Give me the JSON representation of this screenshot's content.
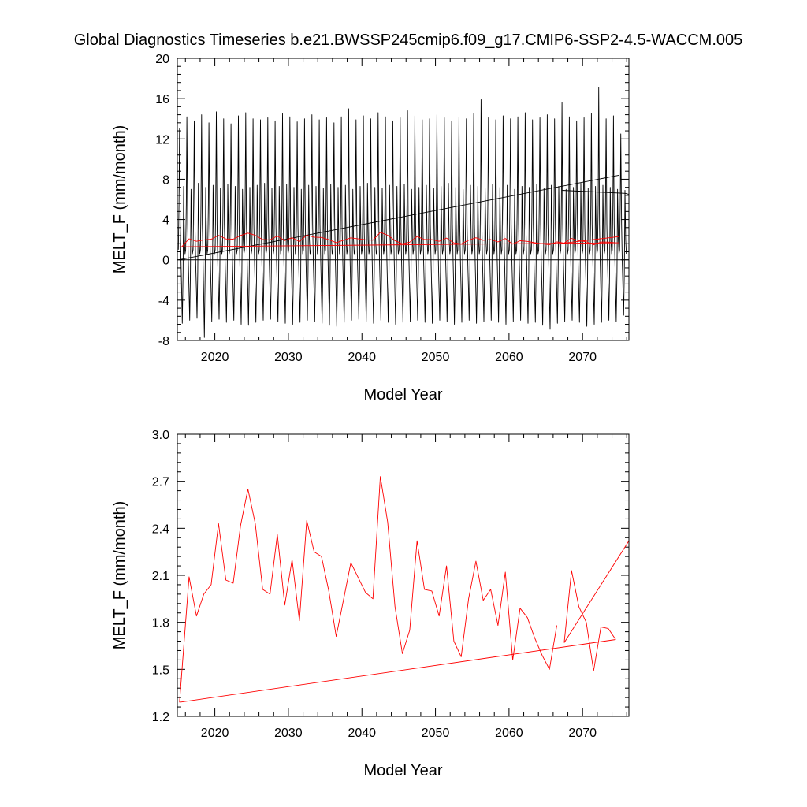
{
  "title": "Global Diagnostics Timeseries b.e21.BWSSP245cmip6.f09_g17.CMIP6-SSP2-4.5-WACCM.005",
  "colors": {
    "monthly": "#000000",
    "annual": "#ff0000",
    "axis": "#000000"
  },
  "chart_data": [
    {
      "type": "line",
      "title": "Global Diagnostics Timeseries b.e21.BWSSP245cmip6.f09_g17.CMIP6-SSP2-4.5-WACCM.005",
      "xlabel": "Model Year",
      "ylabel": "MELT_F (mm/month)",
      "xlim": [
        2014.9,
        2076.3
      ],
      "ylim": [
        -8,
        20
      ],
      "xticks": [
        2020,
        2030,
        2040,
        2050,
        2060,
        2070
      ],
      "xtick_labels": [
        "2020",
        "2030",
        "2040",
        "2050",
        "2060",
        "2070"
      ],
      "yticks": [
        -8,
        -4,
        0,
        4,
        8,
        12,
        16,
        20
      ],
      "ytick_labels": [
        "-8",
        "-4",
        "0",
        "4",
        "8",
        "12",
        "16",
        "20"
      ],
      "zero_line": true,
      "series": [
        {
          "name": "monthly",
          "color": "#000000",
          "seasonal_cycle": {
            "years": [
              2015,
              2075
            ],
            "peaks": [
              13.0,
              14.2,
              13.8,
              14.4,
              13.6,
              14.7,
              14.0,
              13.5,
              14.3,
              14.6,
              14.0,
              13.9,
              14.1,
              13.8,
              14.5,
              14.2,
              13.7,
              14.0,
              14.4,
              13.9,
              14.1,
              13.6,
              14.2,
              15.0,
              13.9,
              14.3,
              14.0,
              14.6,
              14.2,
              13.8,
              14.1,
              14.8,
              14.3,
              13.9,
              14.0,
              14.4,
              14.1,
              13.8,
              14.2,
              14.0,
              14.5,
              15.9,
              14.1,
              13.9,
              14.3,
              14.0,
              14.2,
              14.6,
              13.9,
              14.1,
              14.4,
              14.0,
              15.6,
              14.2,
              13.8,
              14.1,
              14.5,
              17.1,
              14.0,
              14.3,
              12.5
            ],
            "troughs": [
              -6.3,
              -6.0,
              -5.8,
              -7.7,
              -6.1,
              -5.9,
              -6.2,
              -6.0,
              -6.4,
              -6.5,
              -6.2,
              -6.0,
              -5.9,
              -6.1,
              -6.3,
              -6.4,
              -6.2,
              -6.0,
              -6.1,
              -6.3,
              -6.5,
              -6.6,
              -6.2,
              -6.0,
              -5.9,
              -6.1,
              -6.3,
              -6.0,
              -6.2,
              -6.4,
              -6.2,
              -6.1,
              -6.0,
              -6.2,
              -6.3,
              -6.0,
              -6.1,
              -6.4,
              -6.2,
              -6.0,
              -6.3,
              -6.1,
              -6.0,
              -6.2,
              -6.4,
              -6.1,
              -6.0,
              -6.3,
              -6.2,
              -6.5,
              -6.9,
              -6.3,
              -6.1,
              -6.0,
              -6.2,
              -6.6,
              -6.4,
              -6.2,
              -6.0,
              -6.1,
              -5.5
            ],
            "secondary_peaks": [
              7.3,
              7.0,
              7.6,
              7.2,
              7.4,
              7.1,
              7.5,
              7.3,
              7.0,
              7.2,
              7.4,
              7.6,
              7.1,
              7.3,
              7.5,
              7.2,
              7.0,
              7.4,
              7.3,
              7.1,
              7.5,
              7.2,
              7.4,
              7.0,
              7.3,
              7.6,
              7.2,
              7.1,
              7.4,
              7.3,
              7.5,
              7.0,
              7.2,
              7.4,
              7.1,
              7.3,
              7.6,
              7.2,
              7.0,
              7.4,
              7.3,
              7.1,
              7.5,
              7.2,
              7.4,
              7.0,
              7.3,
              7.2,
              7.5,
              7.1,
              7.4,
              7.3,
              7.0,
              7.2,
              7.6,
              7.1,
              7.3,
              7.4,
              7.2,
              7.0,
              6.9
            ]
          }
        },
        {
          "name": "monthly-wrap",
          "color": "#000000",
          "x": [
            2067.2,
            2075.8,
            2076.3
          ],
          "y": [
            6.9,
            6.6,
            6.5
          ]
        },
        {
          "name": "monthly-closure",
          "color": "#000000",
          "x": [
            2015.1,
            2075.0
          ],
          "y": [
            0.0,
            8.4
          ]
        },
        {
          "name": "annual-mean",
          "color": "#ff0000",
          "x": [
            2015.5,
            2016.5,
            2017.5,
            2018.5,
            2019.5,
            2020.5,
            2021.5,
            2022.5,
            2023.5,
            2024.5,
            2025.5,
            2026.5,
            2027.5,
            2028.5,
            2029.5,
            2030.5,
            2031.5,
            2032.5,
            2033.5,
            2034.5,
            2035.5,
            2036.5,
            2038.5,
            2040.5,
            2041.5,
            2042.5,
            2043.5,
            2044.5,
            2045.5,
            2046.5,
            2047.5,
            2048.5,
            2049.5,
            2050.5,
            2051.5,
            2052.5,
            2053.5,
            2054.5,
            2055.5,
            2056.5,
            2057.5,
            2058.5,
            2059.5,
            2060.5,
            2061.5,
            2062.5,
            2063.5,
            2064.5,
            2065.5,
            2066.5,
            2067.5,
            2068.5,
            2069.5,
            2070.5,
            2071.5,
            2072.5,
            2073.5,
            2074.5
          ],
          "y": [
            1.29,
            2.09,
            1.84,
            1.98,
            2.04,
            2.43,
            2.07,
            2.05,
            2.42,
            2.65,
            2.43,
            2.01,
            1.98,
            2.36,
            1.91,
            2.2,
            1.81,
            2.45,
            2.25,
            2.22,
            2.0,
            1.71,
            2.18,
            1.99,
            1.95,
            2.73,
            2.44,
            1.9,
            1.6,
            1.75,
            2.32,
            2.01,
            2.0,
            1.84,
            2.16,
            1.68,
            1.58,
            1.95,
            2.19,
            1.94,
            2.01,
            1.78,
            2.12,
            1.56,
            1.89,
            1.83,
            1.7,
            1.59,
            1.5,
            1.78,
            1.67,
            2.13,
            1.9,
            1.8,
            1.49,
            1.77,
            1.76,
            1.69
          ]
        },
        {
          "name": "annual-closure",
          "color": "#ff0000",
          "x": [
            2015.2,
            2075.0
          ],
          "y": [
            1.29,
            1.69
          ]
        },
        {
          "name": "annual-tail",
          "color": "#ff0000",
          "x": [
            2067.5,
            2075.0
          ],
          "y": [
            1.67,
            2.31
          ]
        }
      ]
    },
    {
      "type": "line",
      "title": "",
      "xlabel": "Model Year",
      "ylabel": "MELT_F (mm/month)",
      "xlim": [
        2014.9,
        2076.3
      ],
      "ylim": [
        1.2,
        3.0
      ],
      "xticks": [
        2020,
        2030,
        2040,
        2050,
        2060,
        2070
      ],
      "xtick_labels": [
        "2020",
        "2030",
        "2040",
        "2050",
        "2060",
        "2070"
      ],
      "yticks": [
        1.2,
        1.5,
        1.8,
        2.1,
        2.4,
        2.7,
        3.0
      ],
      "ytick_labels": [
        "1.2",
        "1.5",
        "1.8",
        "2.1",
        "2.4",
        "2.7",
        "3.0"
      ],
      "zero_line": false,
      "series": [
        {
          "name": "annual-mean",
          "color": "#ff0000",
          "x": [
            2015.2,
            2016.5,
            2017.5,
            2018.5,
            2019.5,
            2020.5,
            2021.5,
            2022.5,
            2023.5,
            2024.5,
            2025.5,
            2026.5,
            2027.5,
            2028.5,
            2029.5,
            2030.5,
            2031.5,
            2032.5,
            2033.5,
            2034.5,
            2035.5,
            2036.5,
            2038.5,
            2040.5,
            2041.5,
            2042.5,
            2043.5,
            2044.5,
            2045.5,
            2046.5,
            2047.5,
            2048.5,
            2049.5,
            2050.5,
            2051.5,
            2052.5,
            2053.5,
            2054.5,
            2055.5,
            2056.5,
            2057.5,
            2058.5,
            2059.5,
            2060.5,
            2061.5,
            2062.5,
            2063.5,
            2064.5,
            2065.5,
            2066.5
          ],
          "y": [
            1.29,
            2.09,
            1.84,
            1.98,
            2.04,
            2.43,
            2.07,
            2.05,
            2.42,
            2.65,
            2.43,
            2.01,
            1.98,
            2.36,
            1.91,
            2.2,
            1.81,
            2.45,
            2.25,
            2.22,
            2.0,
            1.71,
            2.18,
            1.99,
            1.95,
            2.73,
            2.44,
            1.9,
            1.6,
            1.75,
            2.32,
            2.01,
            2.0,
            1.84,
            2.16,
            1.68,
            1.58,
            1.95,
            2.19,
            1.94,
            2.01,
            1.78,
            2.12,
            1.56,
            1.89,
            1.83,
            1.7,
            1.59,
            1.5,
            1.78
          ]
        },
        {
          "name": "annual-mean-tail",
          "color": "#ff0000",
          "x": [
            2067.5,
            2068.5,
            2069.5,
            2070.5,
            2071.5,
            2072.5,
            2073.5,
            2074.5
          ],
          "y": [
            1.67,
            2.13,
            1.9,
            1.8,
            1.49,
            1.77,
            1.76,
            1.69
          ]
        },
        {
          "name": "annual-closure",
          "color": "#ff0000",
          "x": [
            2015.2,
            2074.5
          ],
          "y": [
            1.29,
            1.69
          ]
        },
        {
          "name": "annual-ramp",
          "color": "#ff0000",
          "x": [
            2067.5,
            2076.3
          ],
          "y": [
            1.67,
            2.32
          ]
        }
      ]
    }
  ]
}
